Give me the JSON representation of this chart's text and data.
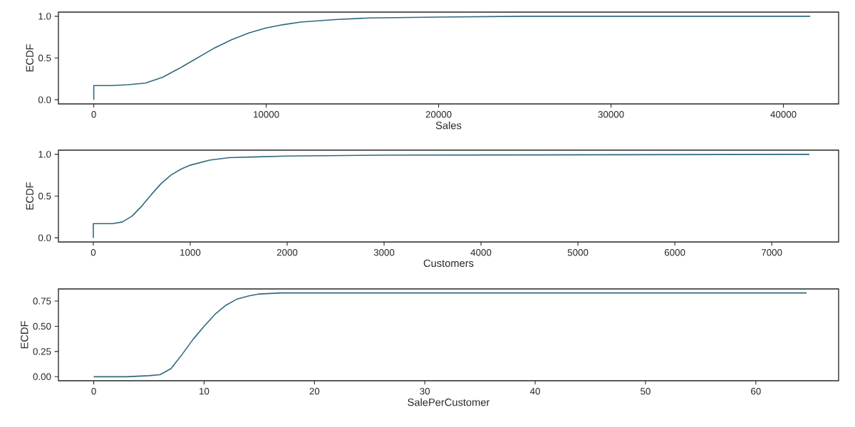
{
  "chart_data": [
    {
      "type": "line",
      "xlabel": "Sales",
      "ylabel": "ECDF",
      "color": "#2e6a7e",
      "x": [
        0,
        0,
        1000,
        2000,
        3000,
        4000,
        5000,
        6000,
        7000,
        8000,
        9000,
        10000,
        11000,
        12000,
        14000,
        16000,
        20000,
        25000,
        41551
      ],
      "values": [
        0,
        0.17,
        0.17,
        0.18,
        0.2,
        0.27,
        0.38,
        0.5,
        0.62,
        0.72,
        0.8,
        0.86,
        0.9,
        0.93,
        0.96,
        0.98,
        0.99,
        1.0,
        1.0
      ],
      "xlim": [
        -2050,
        43200
      ],
      "ylim": [
        -0.05,
        1.05
      ],
      "xticks": [
        0,
        10000,
        20000,
        30000,
        40000
      ],
      "yticks": [
        {
          "value": 0,
          "label": "0.0"
        },
        0.5,
        {
          "value": 1,
          "label": "1.0"
        }
      ]
    },
    {
      "type": "line",
      "xlabel": "Customers",
      "ylabel": "ECDF",
      "color": "#2e6a7e",
      "x": [
        0,
        0,
        100,
        200,
        300,
        400,
        500,
        600,
        700,
        800,
        900,
        1000,
        1200,
        1400,
        1700,
        2000,
        3000,
        7388
      ],
      "values": [
        0,
        0.17,
        0.17,
        0.17,
        0.19,
        0.26,
        0.38,
        0.52,
        0.65,
        0.75,
        0.82,
        0.87,
        0.93,
        0.96,
        0.97,
        0.98,
        0.99,
        1.0
      ],
      "xlim": [
        -360,
        7690
      ],
      "ylim": [
        -0.05,
        1.05
      ],
      "xticks": [
        0,
        1000,
        2000,
        3000,
        4000,
        5000,
        6000,
        7000
      ],
      "yticks": [
        {
          "value": 0,
          "label": "0.0"
        },
        0.5,
        {
          "value": 1,
          "label": "1.0"
        }
      ]
    },
    {
      "type": "line",
      "xlabel": "SalePerCustomer",
      "ylabel": "ECDF",
      "color": "#2e6a7e",
      "x": [
        0,
        3,
        5,
        6,
        7,
        8,
        9,
        10,
        11,
        12,
        13,
        14,
        15,
        17,
        20,
        64.6
      ],
      "values": [
        0,
        0,
        0.01,
        0.02,
        0.08,
        0.22,
        0.37,
        0.5,
        0.62,
        0.71,
        0.77,
        0.8,
        0.82,
        0.83,
        0.83,
        0.83
      ],
      "xlim": [
        -3.2,
        67.5
      ],
      "ylim": [
        -0.04,
        0.87
      ],
      "xticks": [
        0,
        10,
        20,
        30,
        40,
        50,
        60
      ],
      "yticks": [
        {
          "value": 0,
          "label": "0.00"
        },
        {
          "value": 0.25,
          "label": "0.25"
        },
        {
          "value": 0.5,
          "label": "0.50"
        },
        {
          "value": 0.75,
          "label": "0.75"
        }
      ]
    }
  ]
}
